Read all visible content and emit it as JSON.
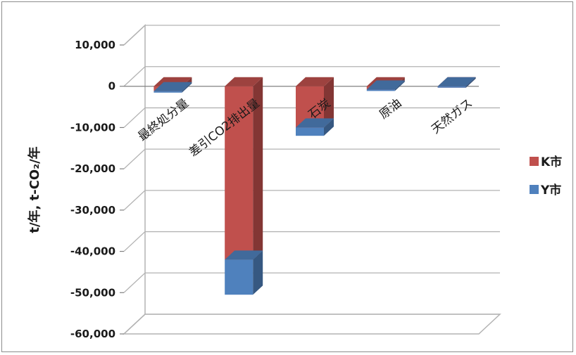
{
  "chart_data": {
    "type": "bar",
    "stacked": true,
    "three_d": true,
    "categories": [
      "最終処分量",
      "差引CO2排出量",
      "石炭",
      "原油",
      "天然ガス"
    ],
    "series": [
      {
        "name": "K市",
        "color": "#c0504d",
        "values": [
          -1200,
          -42000,
          -10000,
          -800,
          0
        ]
      },
      {
        "name": "Y市",
        "color": "#4f81bd",
        "values": [
          0,
          -8500,
          -2000,
          0,
          0
        ]
      }
    ],
    "yticks": [
      "10,000",
      "0",
      "-10,000",
      "-20,000",
      "-30,000",
      "-40,000",
      "-50,000",
      "-60,000"
    ],
    "ylim": [
      -60000,
      10000
    ],
    "ylabel": "t/年, t-CO₂/年",
    "xlabel": "",
    "title": "",
    "grid": true,
    "legend_position": "right"
  }
}
